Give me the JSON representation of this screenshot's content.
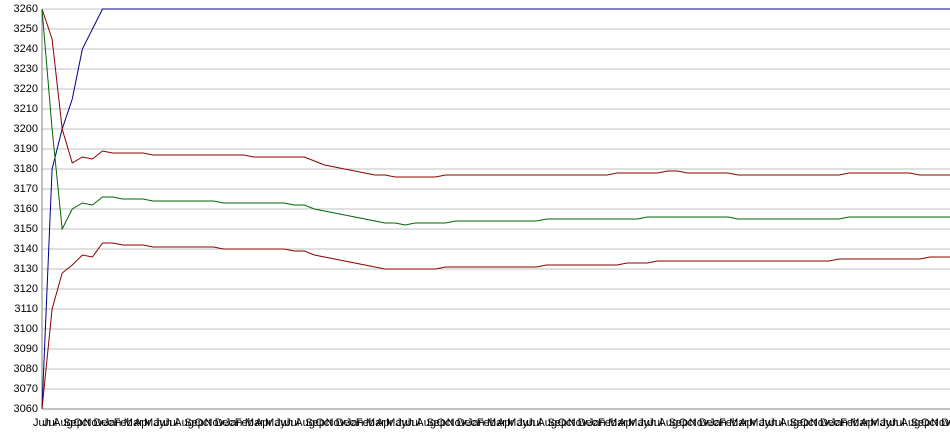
{
  "chart_data": {
    "type": "line",
    "categories": [
      "Jun",
      "Jul",
      "Aug",
      "Sep",
      "Oct",
      "Nov",
      "Dec",
      "Jan",
      "Feb",
      "Mar",
      "Apr",
      "May",
      "Jun",
      "Jul",
      "Aug",
      "Sep",
      "Oct",
      "Nov",
      "Dec",
      "Jan",
      "Feb",
      "Mar",
      "Apr",
      "May",
      "Jun",
      "Jul",
      "Aug",
      "Sep",
      "Oct",
      "Nov",
      "Dec",
      "Jan",
      "Feb",
      "Mar",
      "Apr",
      "May",
      "Jun",
      "Jul",
      "Aug",
      "Sep",
      "Oct",
      "Nov",
      "Dec",
      "Jan",
      "Feb",
      "Mar",
      "Apr",
      "May",
      "Jun",
      "Jul",
      "Aug",
      "Sep",
      "Oct",
      "Nov",
      "Dec",
      "Jan",
      "Feb",
      "Mar",
      "Apr",
      "May",
      "Jun",
      "Jul",
      "Aug",
      "Sep",
      "Oct",
      "Nov",
      "Dec",
      "Jan",
      "Feb",
      "Mar",
      "Apr",
      "May",
      "Jun",
      "Jul",
      "Aug",
      "Sep",
      "Oct",
      "Nov",
      "Dec",
      "Jan",
      "Feb",
      "Mar",
      "Apr",
      "May",
      "Jun",
      "Jul",
      "Aug",
      "Sep",
      "Oct",
      "Nov",
      "Dec"
    ],
    "series": [
      {
        "color": "#00008b",
        "values": [
          3060,
          3180,
          3200,
          3215,
          3240,
          3250,
          3260,
          3260,
          3260,
          3260,
          3260,
          3260,
          3260,
          3260,
          3260,
          3260,
          3260,
          3260,
          3260,
          3260,
          3260,
          3260,
          3260,
          3260,
          3260,
          3260,
          3260,
          3260,
          3260,
          3260,
          3260,
          3260,
          3260,
          3260,
          3260,
          3260,
          3260,
          3260,
          3260,
          3260,
          3260,
          3260,
          3260,
          3260,
          3260,
          3260,
          3260,
          3260,
          3260,
          3260,
          3260,
          3260,
          3260,
          3260,
          3260,
          3260,
          3260,
          3260,
          3260,
          3260,
          3260,
          3260,
          3260,
          3260,
          3260,
          3260,
          3260,
          3260,
          3260,
          3260,
          3260,
          3260,
          3260,
          3260,
          3260,
          3260,
          3260,
          3260,
          3260,
          3260,
          3260,
          3260,
          3260,
          3260,
          3260,
          3260,
          3260,
          3260,
          3260,
          3260,
          3260
        ]
      },
      {
        "color": "#8b0000",
        "values": [
          3260,
          3245,
          3200,
          3183,
          3186,
          3185,
          3189,
          3188,
          3188,
          3188,
          3188,
          3187,
          3187,
          3187,
          3187,
          3187,
          3187,
          3187,
          3187,
          3187,
          3187,
          3186,
          3186,
          3186,
          3186,
          3186,
          3186,
          3184,
          3182,
          3181,
          3180,
          3179,
          3178,
          3177,
          3177,
          3176,
          3176,
          3176,
          3176,
          3176,
          3177,
          3177,
          3177,
          3177,
          3177,
          3177,
          3177,
          3177,
          3177,
          3177,
          3177,
          3177,
          3177,
          3177,
          3177,
          3177,
          3177,
          3178,
          3178,
          3178,
          3178,
          3178,
          3179,
          3179,
          3178,
          3178,
          3178,
          3178,
          3178,
          3177,
          3177,
          3177,
          3177,
          3177,
          3177,
          3177,
          3177,
          3177,
          3177,
          3177,
          3178,
          3178,
          3178,
          3178,
          3178,
          3178,
          3178,
          3177,
          3177,
          3177,
          3177
        ]
      },
      {
        "color": "#006400",
        "values": [
          3260,
          3200,
          3150,
          3160,
          3163,
          3162,
          3166,
          3166,
          3165,
          3165,
          3165,
          3164,
          3164,
          3164,
          3164,
          3164,
          3164,
          3164,
          3163,
          3163,
          3163,
          3163,
          3163,
          3163,
          3163,
          3162,
          3162,
          3160,
          3159,
          3158,
          3157,
          3156,
          3155,
          3154,
          3153,
          3153,
          3152,
          3153,
          3153,
          3153,
          3153,
          3154,
          3154,
          3154,
          3154,
          3154,
          3154,
          3154,
          3154,
          3154,
          3155,
          3155,
          3155,
          3155,
          3155,
          3155,
          3155,
          3155,
          3155,
          3155,
          3156,
          3156,
          3156,
          3156,
          3156,
          3156,
          3156,
          3156,
          3156,
          3155,
          3155,
          3155,
          3155,
          3155,
          3155,
          3155,
          3155,
          3155,
          3155,
          3155,
          3156,
          3156,
          3156,
          3156,
          3156,
          3156,
          3156,
          3156,
          3156,
          3156,
          3156
        ]
      },
      {
        "color": "#8b0000",
        "values": [
          3060,
          3110,
          3128,
          3132,
          3137,
          3136,
          3143,
          3143,
          3142,
          3142,
          3142,
          3141,
          3141,
          3141,
          3141,
          3141,
          3141,
          3141,
          3140,
          3140,
          3140,
          3140,
          3140,
          3140,
          3140,
          3139,
          3139,
          3137,
          3136,
          3135,
          3134,
          3133,
          3132,
          3131,
          3130,
          3130,
          3130,
          3130,
          3130,
          3130,
          3131,
          3131,
          3131,
          3131,
          3131,
          3131,
          3131,
          3131,
          3131,
          3131,
          3132,
          3132,
          3132,
          3132,
          3132,
          3132,
          3132,
          3132,
          3133,
          3133,
          3133,
          3134,
          3134,
          3134,
          3134,
          3134,
          3134,
          3134,
          3134,
          3134,
          3134,
          3134,
          3134,
          3134,
          3134,
          3134,
          3134,
          3134,
          3134,
          3135,
          3135,
          3135,
          3135,
          3135,
          3135,
          3135,
          3135,
          3135,
          3136,
          3136,
          3136
        ]
      }
    ],
    "ylim": [
      3060,
      3260
    ],
    "yticks": [
      3060,
      3070,
      3080,
      3090,
      3100,
      3110,
      3120,
      3130,
      3140,
      3150,
      3160,
      3170,
      3180,
      3190,
      3200,
      3210,
      3220,
      3230,
      3240,
      3250,
      3260
    ],
    "grid": true
  }
}
